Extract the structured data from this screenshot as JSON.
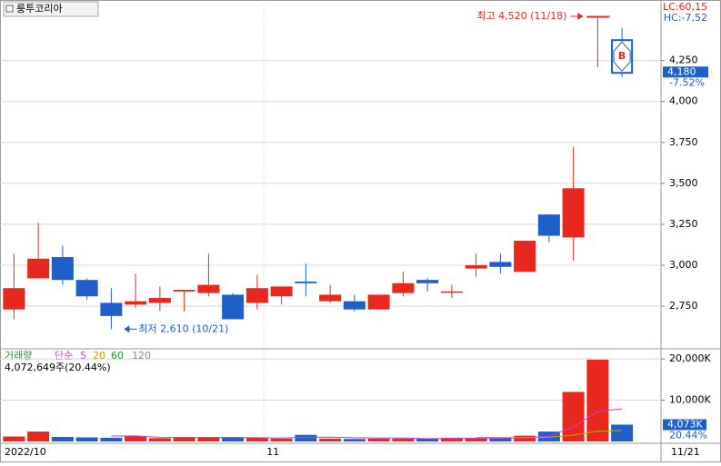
{
  "chart_data": {
    "type": "candlestick",
    "title": "룽투코리아",
    "categories": [
      "2022/10",
      null,
      null,
      null,
      null,
      null,
      null,
      null,
      null,
      null,
      null,
      "11",
      null,
      null,
      null,
      null,
      null,
      null,
      null,
      null,
      null,
      null,
      null,
      null,
      null,
      "11/21"
    ],
    "open": [
      2730,
      2920,
      3050,
      2910,
      2770,
      2760,
      2770,
      2840,
      2830,
      2820,
      2770,
      2810,
      2900,
      2780,
      2780,
      2730,
      2830,
      2910,
      2840,
      2980,
      3020,
      2960,
      3310,
      3170,
      4520,
      4370
    ],
    "high": [
      3070,
      3260,
      3120,
      2920,
      2860,
      2950,
      2870,
      2850,
      3070,
      2830,
      2940,
      2870,
      3010,
      2880,
      2820,
      2820,
      2960,
      2920,
      2880,
      3070,
      3070,
      3150,
      3310,
      3720,
      4520,
      4450
    ],
    "low": [
      2670,
      2920,
      2880,
      2790,
      2610,
      2740,
      2720,
      2720,
      2810,
      2670,
      2730,
      2760,
      2810,
      2770,
      2720,
      2730,
      2810,
      2840,
      2800,
      2930,
      2950,
      2960,
      3140,
      3030,
      4210,
      4150
    ],
    "close": [
      2860,
      3040,
      2910,
      2810,
      2690,
      2780,
      2800,
      2850,
      2880,
      2670,
      2860,
      2870,
      2890,
      2820,
      2730,
      2820,
      2890,
      2890,
      2840,
      3000,
      2990,
      3150,
      3180,
      3470,
      4520,
      4180
    ],
    "up_color": "#e8281e",
    "down_color": "#1f5fc9",
    "ylim": [
      2495,
      4620
    ],
    "yticks": [
      {
        "value": 2750,
        "label": "2,750"
      },
      {
        "value": 3000,
        "label": "3,000"
      },
      {
        "value": 3250,
        "label": "3,250"
      },
      {
        "value": 3500,
        "label": "3,500"
      },
      {
        "value": 3750,
        "label": "3,750"
      },
      {
        "value": 4000,
        "label": "4,000"
      },
      {
        "value": 4250,
        "label": "4,250"
      }
    ],
    "grid": true,
    "high_annotation": "최고 4,520 (11/18)",
    "low_annotation": "최저 2,610 (10/21)",
    "signal_marker": "B",
    "lc_label": "LC:60,15",
    "hc_label": "HC:-7,52",
    "last_price_label": "4,180",
    "last_change_label": "-7.52%",
    "volume": {
      "title": "거래량",
      "ma_title": "단순",
      "values": [
        1200,
        2400,
        1100,
        1000,
        900,
        1300,
        800,
        1000,
        900,
        900,
        1000,
        700,
        1600,
        700,
        600,
        700,
        700,
        700,
        900,
        900,
        800,
        1400,
        2400,
        12000,
        19800,
        4073
      ],
      "ylim": [
        0,
        22000
      ],
      "yticks": [
        {
          "value": 10000,
          "label": "10,000K"
        },
        {
          "value": 20000,
          "label": "20,000K"
        }
      ],
      "info": "4,072,649주(20.44%)",
      "last_label": "4,073K",
      "last_ratio": "20.44%",
      "moving_averages": [
        {
          "name": "5",
          "color": "#d43dd0",
          "values": [
            null,
            null,
            null,
            null,
            1320,
            1340,
            1020,
            1000,
            980,
            980,
            920,
            860,
            1020,
            1040,
            920,
            860,
            860,
            680,
            720,
            780,
            800,
            940,
            1240,
            3500,
            7260,
            7930
          ]
        },
        {
          "name": "20",
          "color": "#c8a400",
          "values": [
            null,
            null,
            null,
            null,
            null,
            null,
            null,
            null,
            null,
            null,
            null,
            null,
            null,
            null,
            null,
            null,
            null,
            null,
            null,
            1000,
            980,
            950,
            1010,
            1550,
            2490,
            2650
          ]
        },
        {
          "name": "60",
          "color": "#1a9a2a",
          "values": []
        },
        {
          "name": "120",
          "color": "#888888",
          "values": []
        }
      ]
    }
  }
}
